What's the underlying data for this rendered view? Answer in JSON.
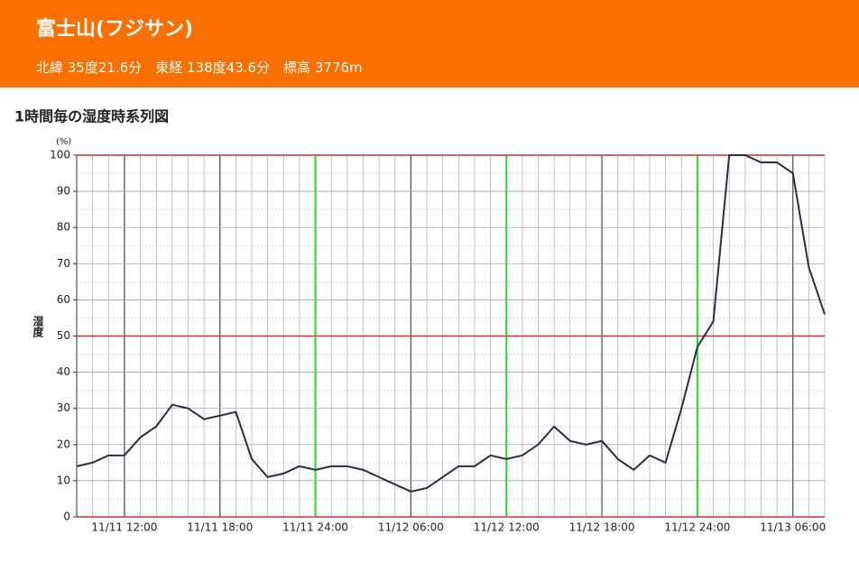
{
  "header": {
    "title": "富士山(フジサン)",
    "location": "北緯 35度21.6分　東経 138度43.6分　標高 3776m"
  },
  "chart_data": {
    "type": "line",
    "title": "1時間毎の湿度時系列図",
    "y_label": "湿度",
    "y_unit": "(%)",
    "categories": [
      null,
      null,
      null,
      "11/11 12:00",
      null,
      null,
      null,
      null,
      null,
      "11/11 18:00",
      null,
      null,
      null,
      null,
      null,
      "11/11 24:00",
      null,
      null,
      null,
      null,
      null,
      "11/12 06:00",
      null,
      null,
      null,
      null,
      null,
      "11/12 12:00",
      null,
      null,
      null,
      null,
      null,
      "11/12 18:00",
      null,
      null,
      null,
      null,
      null,
      "11/12 24:00",
      null,
      null,
      null,
      null,
      null,
      "11/13 06:00",
      null,
      null
    ],
    "series": [
      {
        "name": "湿度",
        "color": "#2b2d42",
        "values": [
          14,
          15,
          17,
          17,
          22,
          25,
          31,
          30,
          27,
          28,
          29,
          16,
          11,
          12,
          14,
          13,
          14,
          14,
          13,
          11,
          9,
          7,
          8,
          11,
          14,
          14,
          17,
          16,
          17,
          20,
          25,
          21,
          20,
          21,
          16,
          13,
          17,
          15,
          30,
          47,
          54,
          100,
          100,
          98,
          98,
          95,
          69,
          56
        ]
      }
    ],
    "ylim": [
      0,
      100
    ],
    "yticks": [
      0,
      10,
      20,
      30,
      40,
      50,
      60,
      70,
      80,
      90,
      100
    ],
    "grid": true
  }
}
